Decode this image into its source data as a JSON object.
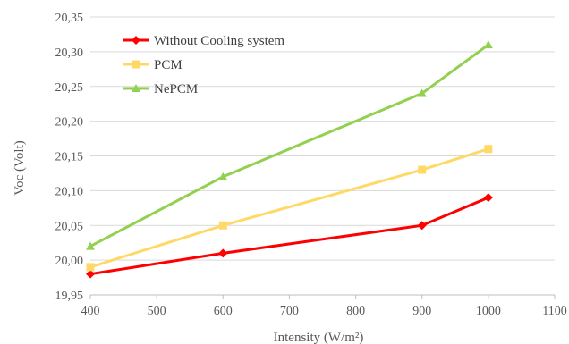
{
  "chart_data": {
    "type": "line",
    "title": "",
    "xlabel": "Intensity (W/m²)",
    "ylabel": "Voc (Volt)",
    "xlim": [
      400,
      1100
    ],
    "ylim": [
      19.95,
      20.35
    ],
    "x_ticks": [
      "400",
      "500",
      "600",
      "700",
      "800",
      "900",
      "1000",
      "1100"
    ],
    "y_ticks": [
      "19,95",
      "20,00",
      "20,05",
      "20,10",
      "20,15",
      "20,20",
      "20,25",
      "20,30",
      "20,35"
    ],
    "grid": "horizontal",
    "legend_position": "top-left",
    "series": [
      {
        "name": "Without Cooling system",
        "color": "#ff0000",
        "marker": "diamond",
        "x": [
          400,
          600,
          900,
          1000
        ],
        "y": [
          19.98,
          20.01,
          20.05,
          20.09
        ]
      },
      {
        "name": "PCM",
        "color": "#ffd966",
        "marker": "square",
        "x": [
          400,
          600,
          900,
          1000
        ],
        "y": [
          19.99,
          20.05,
          20.13,
          20.16
        ]
      },
      {
        "name": "NePCM",
        "color": "#92d050",
        "marker": "triangle",
        "x": [
          400,
          600,
          900,
          1000
        ],
        "y": [
          20.02,
          20.12,
          20.24,
          20.31
        ]
      }
    ]
  }
}
